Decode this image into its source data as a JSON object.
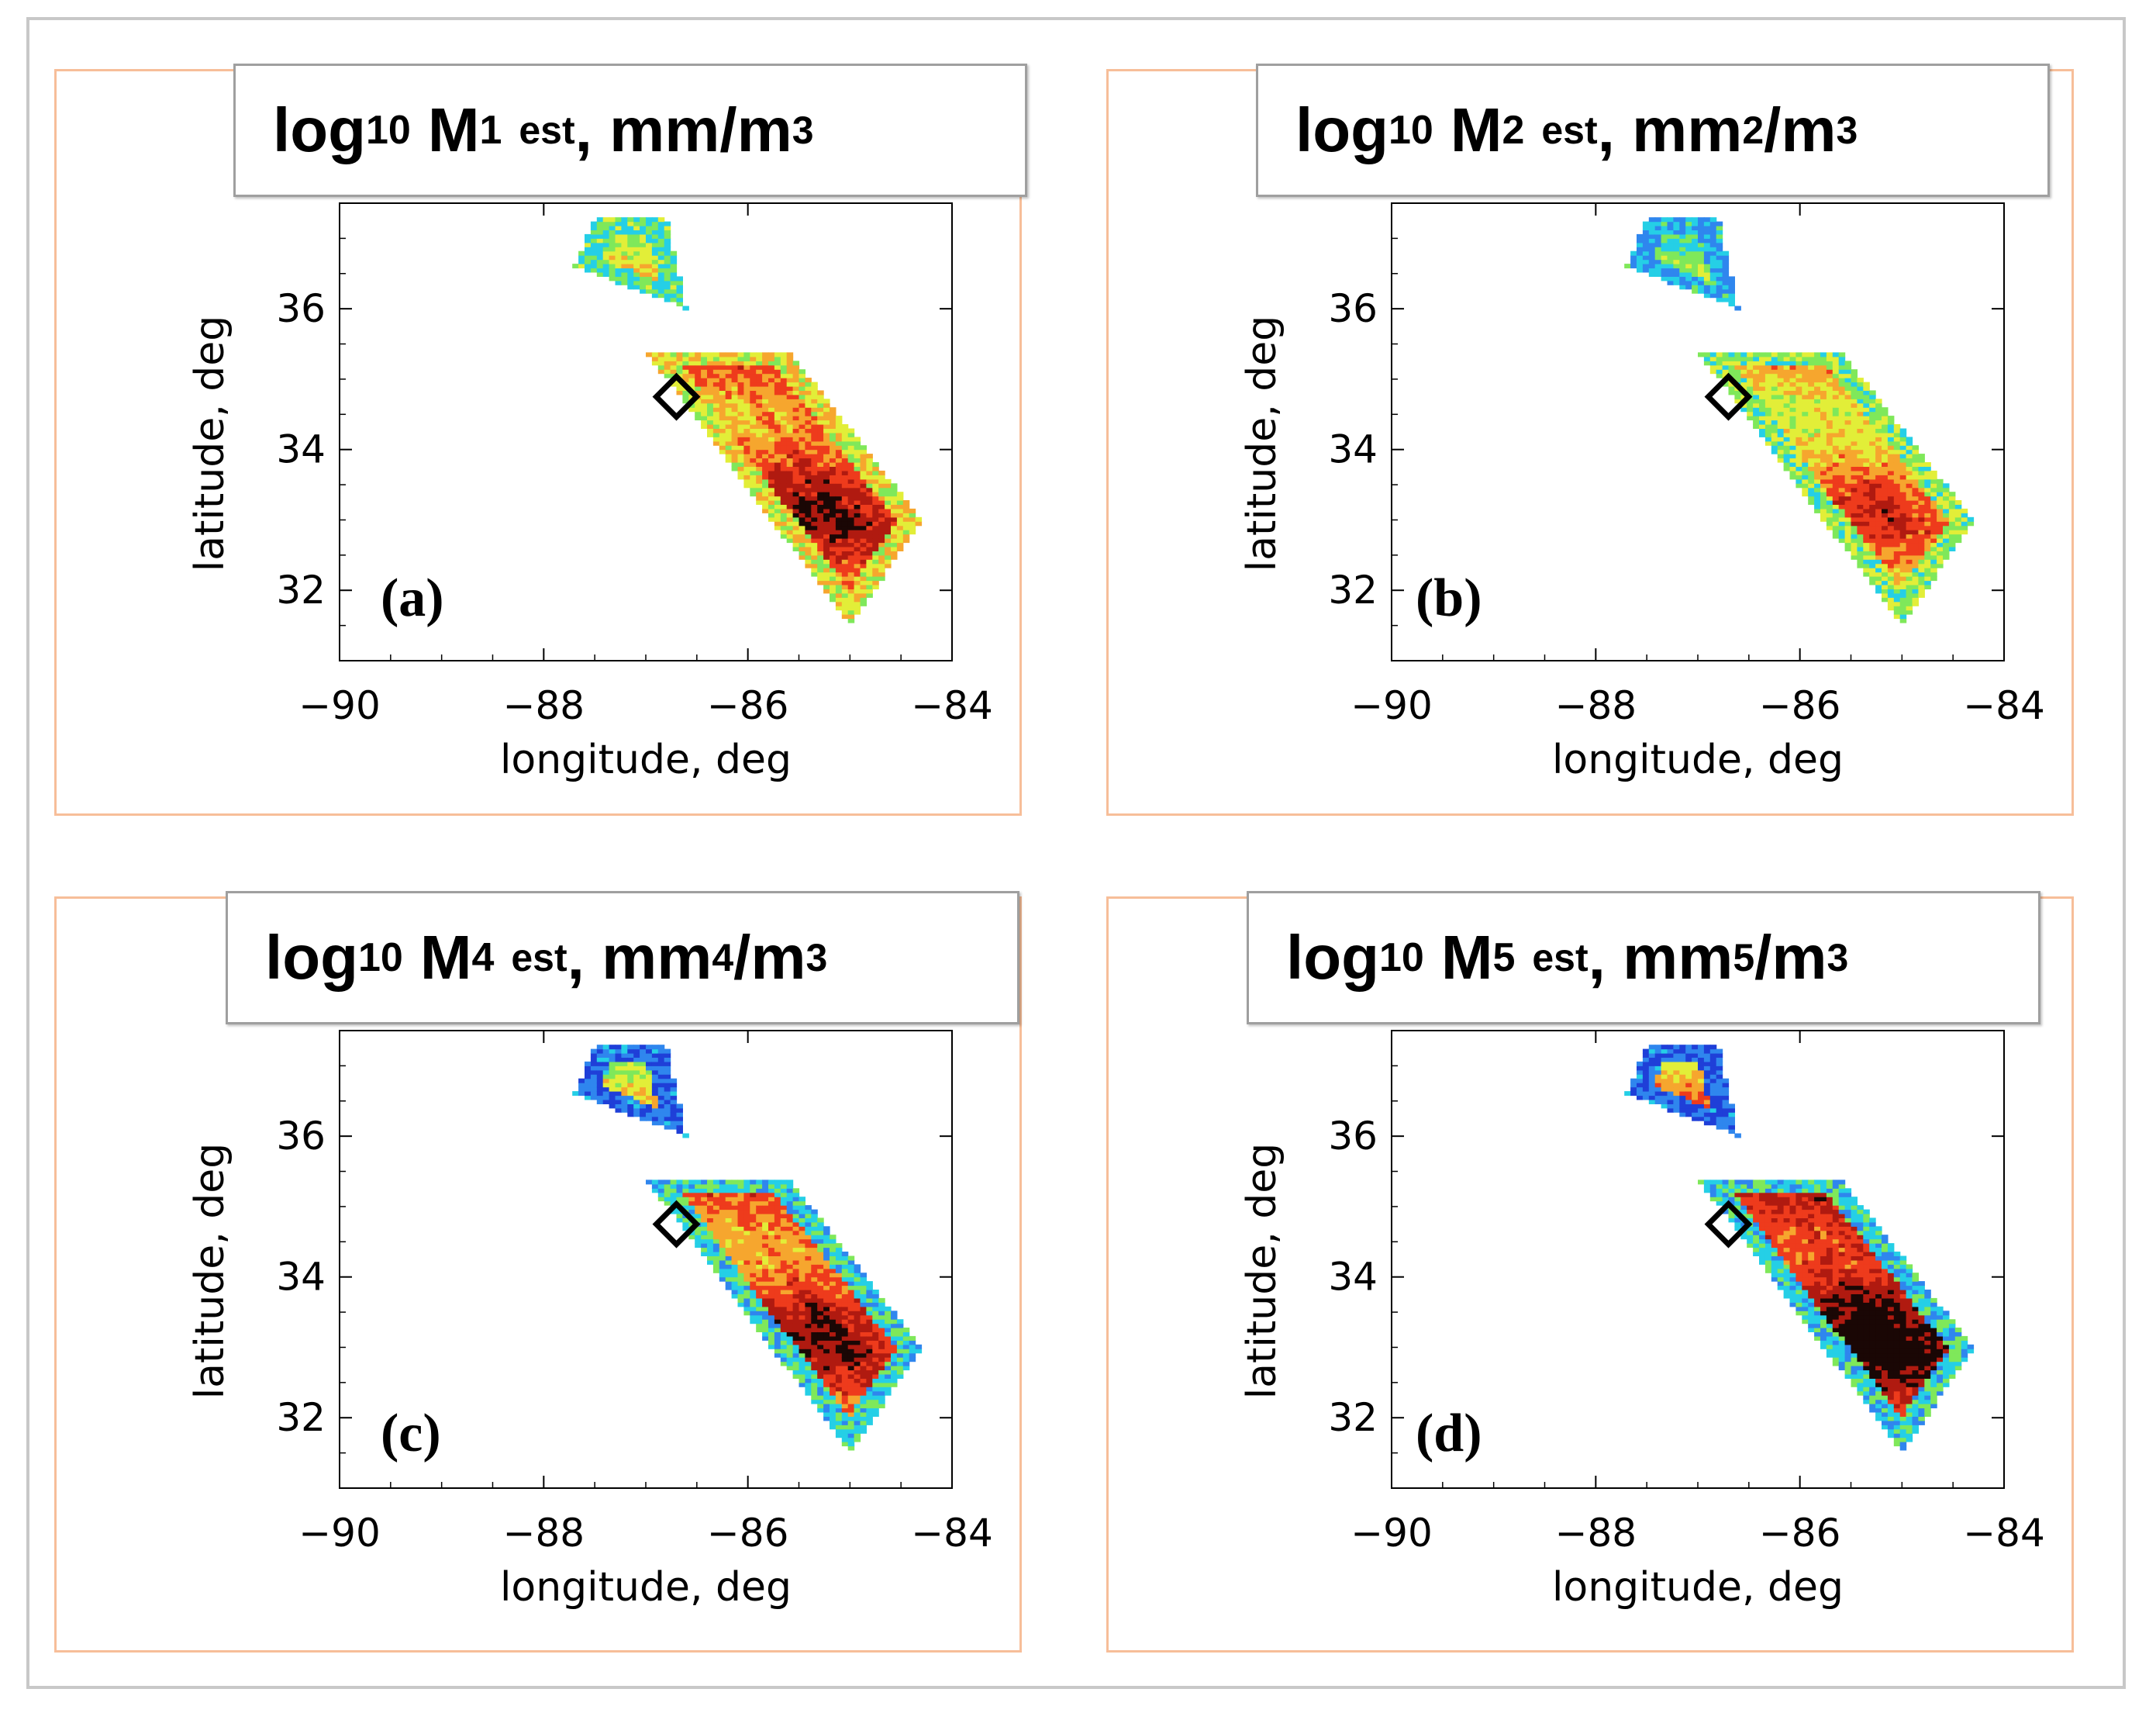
{
  "figure": {
    "colormap": [
      "#1f3fd8",
      "#2f86ee",
      "#25cfe6",
      "#7fe85a",
      "#e2ee38",
      "#f6a62e",
      "#ee3b1c",
      "#b01a10",
      "#1a0705"
    ],
    "axis_color": "#000000",
    "frame_color": "#f7be99"
  },
  "chart_data": [
    {
      "type": "heatmap",
      "panel_label": "(a)",
      "title": {
        "prefix": "log",
        "log_base": "10",
        "var": "M",
        "var_sub": "1",
        "var_sup": "est",
        "unit": "mm/m",
        "unit_sup": "3"
      },
      "xlabel": "longitude,  deg",
      "ylabel": "latitude,  deg",
      "xlim": [
        -90,
        -84
      ],
      "ylim": [
        31,
        37.5
      ],
      "xticks": [
        -90,
        -88,
        -86,
        -84
      ],
      "xtick_labels": [
        "−90",
        "−88",
        "−86",
        "−84"
      ],
      "yticks": [
        32,
        34,
        36
      ],
      "ytick_labels": [
        "32",
        "34",
        "36"
      ],
      "swath": {
        "corners": [
          [
            -87.0,
            35.4
          ],
          [
            -85.6,
            35.4
          ],
          [
            -84.3,
            33.0
          ],
          [
            -85.0,
            31.5
          ]
        ],
        "north_blob": [
          [
            -87.5,
            37.3
          ],
          [
            -86.8,
            37.3
          ],
          [
            -86.6,
            36.0
          ],
          [
            -87.7,
            36.6
          ]
        ]
      },
      "marker": {
        "type": "diamond",
        "lon": -86.7,
        "lat": 34.75
      },
      "intensity": {
        "base": 6,
        "edge": 3,
        "core": 7
      }
    },
    {
      "type": "heatmap",
      "panel_label": "(b)",
      "title": {
        "prefix": "log",
        "log_base": "10",
        "var": "M",
        "var_sub": "2",
        "var_sup": "est",
        "unit": "mm",
        "unit_mid_sup": "2",
        "unit_tail": "/m",
        "unit_sup": "3"
      },
      "xlabel": "longitude,  deg",
      "ylabel": "latitude,  deg",
      "xlim": [
        -90,
        -84
      ],
      "ylim": [
        31,
        37.5
      ],
      "xticks": [
        -90,
        -88,
        -86,
        -84
      ],
      "xtick_labels": [
        "−90",
        "−88",
        "−86",
        "−84"
      ],
      "yticks": [
        32,
        34,
        36
      ],
      "ytick_labels": [
        "32",
        "34",
        "36"
      ],
      "swath": {
        "corners": [
          [
            -87.0,
            35.4
          ],
          [
            -85.6,
            35.4
          ],
          [
            -84.3,
            33.0
          ],
          [
            -85.0,
            31.5
          ]
        ],
        "north_blob": [
          [
            -87.5,
            37.3
          ],
          [
            -86.8,
            37.3
          ],
          [
            -86.6,
            36.0
          ],
          [
            -87.7,
            36.6
          ]
        ]
      },
      "marker": {
        "type": "diamond",
        "lon": -86.7,
        "lat": 34.75
      },
      "intensity": {
        "base": 5,
        "edge": 2,
        "core": 6
      }
    },
    {
      "type": "heatmap",
      "panel_label": "(c)",
      "title": {
        "prefix": "log",
        "log_base": "10",
        "var": "M",
        "var_sub": "4",
        "var_sup": "est",
        "unit": "mm",
        "unit_mid_sup": "4",
        "unit_tail": "/m",
        "unit_sup": "3"
      },
      "xlabel": "longitude,  deg",
      "ylabel": "latitude,  deg",
      "xlim": [
        -90,
        -84
      ],
      "ylim": [
        31,
        37.5
      ],
      "xticks": [
        -90,
        -88,
        -86,
        -84
      ],
      "xtick_labels": [
        "−90",
        "−88",
        "−86",
        "−84"
      ],
      "yticks": [
        32,
        34,
        36
      ],
      "ytick_labels": [
        "32",
        "34",
        "36"
      ],
      "swath": {
        "corners": [
          [
            -87.0,
            35.4
          ],
          [
            -85.6,
            35.4
          ],
          [
            -84.3,
            33.0
          ],
          [
            -85.0,
            31.5
          ]
        ],
        "north_blob": [
          [
            -87.5,
            37.3
          ],
          [
            -86.8,
            37.3
          ],
          [
            -86.6,
            36.0
          ],
          [
            -87.7,
            36.6
          ]
        ]
      },
      "marker": {
        "type": "diamond",
        "lon": -86.7,
        "lat": 34.75
      },
      "intensity": {
        "base": 6,
        "edge": 1,
        "core": 7
      }
    },
    {
      "type": "heatmap",
      "panel_label": "(d)",
      "title": {
        "prefix": "log",
        "log_base": "10",
        "var": "M",
        "var_sub": "5",
        "var_sup": "est",
        "unit": "mm",
        "unit_mid_sup": "5",
        "unit_tail": "/m",
        "unit_sup": "3"
      },
      "xlabel": "longitude,  deg",
      "ylabel": "latitude,  deg",
      "xlim": [
        -90,
        -84
      ],
      "ylim": [
        31,
        37.5
      ],
      "xticks": [
        -90,
        -88,
        -86,
        -84
      ],
      "xtick_labels": [
        "−90",
        "−88",
        "−86",
        "−84"
      ],
      "yticks": [
        32,
        34,
        36
      ],
      "ytick_labels": [
        "32",
        "34",
        "36"
      ],
      "swath": {
        "corners": [
          [
            -87.0,
            35.4
          ],
          [
            -85.6,
            35.4
          ],
          [
            -84.3,
            33.0
          ],
          [
            -85.0,
            31.5
          ]
        ],
        "north_blob": [
          [
            -87.5,
            37.3
          ],
          [
            -86.8,
            37.3
          ],
          [
            -86.6,
            36.0
          ],
          [
            -87.7,
            36.6
          ]
        ]
      },
      "marker": {
        "type": "diamond",
        "lon": -86.7,
        "lat": 34.75
      },
      "intensity": {
        "base": 7,
        "edge": 1,
        "core": 8
      }
    }
  ]
}
